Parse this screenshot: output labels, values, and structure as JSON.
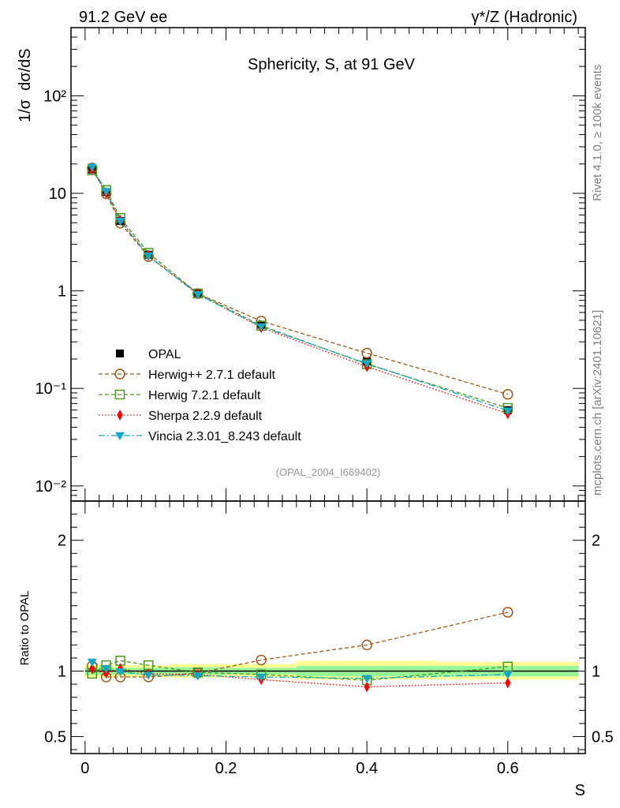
{
  "header": {
    "left": "91.2 GeV ee",
    "right": "γ*/Z (Hadronic)"
  },
  "side_labels": {
    "top": "Rivet 4.1.0, ≥ 100k events",
    "bottom": "mcplots.cern.ch [arXiv:2401.10621]"
  },
  "colors": {
    "opal": "#000000",
    "herwigpp": "#a0581c",
    "herwig7": "#4a9a20",
    "sherpa": "#ff0000",
    "vincia": "#17a8c8",
    "band_inner": "#98f598",
    "band_outer": "#fdfc96",
    "watermark": "#999999",
    "side_text": "#808080"
  },
  "chart_data": [
    {
      "type": "line",
      "panel": "main",
      "title": "Sphericity, S, at 91 GeV",
      "watermark": "(OPAL_2004_I669402)",
      "ylabel": "1/σ  dσ/dS",
      "yscale": "log",
      "xlim": [
        -0.02,
        0.71
      ],
      "ylim": [
        0.007,
        500
      ],
      "y_ticks": [
        {
          "value": 0.01,
          "label": "10⁻²"
        },
        {
          "value": 0.1,
          "label": "10⁻¹"
        },
        {
          "value": 1,
          "label": "1"
        },
        {
          "value": 10,
          "label": "10"
        },
        {
          "value": 100,
          "label": "10²"
        }
      ],
      "x": [
        0.01,
        0.03,
        0.05,
        0.09,
        0.16,
        0.25,
        0.4,
        0.6
      ],
      "legend_position": "bottom-left",
      "series": [
        {
          "name": "OPAL",
          "role": "data",
          "values": [
            17.5,
            10.3,
            5.2,
            2.35,
            0.95,
            0.45,
            0.19,
            0.06
          ]
        },
        {
          "name": "Herwig++ 2.7.1 default",
          "style": "dashed",
          "marker": "open-circle",
          "values": [
            18.2,
            9.9,
            4.95,
            2.25,
            0.94,
            0.49,
            0.23,
            0.087
          ]
        },
        {
          "name": "Herwig 7.2.1 default",
          "style": "dashed",
          "marker": "open-square",
          "values": [
            17.2,
            10.8,
            5.6,
            2.45,
            0.94,
            0.44,
            0.177,
            0.063
          ]
        },
        {
          "name": "Sherpa 2.2.9 default",
          "style": "dotted",
          "marker": "diamond",
          "values": [
            17.7,
            10.1,
            5.3,
            2.3,
            0.93,
            0.42,
            0.167,
            0.055
          ]
        },
        {
          "name": "Vincia 2.3.01_8.243 default",
          "style": "dashdot",
          "marker": "down-triangle",
          "values": [
            18.6,
            10.5,
            5.2,
            2.28,
            0.92,
            0.43,
            0.18,
            0.059
          ]
        }
      ]
    },
    {
      "type": "line",
      "panel": "ratio",
      "ylabel": "Ratio to OPAL",
      "xlabel": "S",
      "xlim": [
        -0.02,
        0.71
      ],
      "ylim": [
        0.37,
        2.3
      ],
      "x_ticks": [
        {
          "value": 0,
          "label": "0"
        },
        {
          "value": 0.2,
          "label": "0.2"
        },
        {
          "value": 0.4,
          "label": "0.4"
        },
        {
          "value": 0.6,
          "label": "0.6"
        }
      ],
      "y_ticks": [
        {
          "value": 0.5,
          "label": "0.5"
        },
        {
          "value": 1,
          "label": "1"
        },
        {
          "value": 2,
          "label": "2"
        }
      ],
      "x": [
        0.01,
        0.03,
        0.05,
        0.09,
        0.16,
        0.25,
        0.4,
        0.6
      ],
      "bands": [
        {
          "x0": 0.0,
          "x1": 0.02,
          "inner": [
            0.97,
            1.03
          ],
          "outer": [
            0.95,
            1.05
          ]
        },
        {
          "x0": 0.02,
          "x1": 0.04,
          "inner": [
            0.97,
            1.03
          ],
          "outer": [
            0.95,
            1.05
          ]
        },
        {
          "x0": 0.04,
          "x1": 0.06,
          "inner": [
            0.975,
            1.025
          ],
          "outer": [
            0.955,
            1.045
          ]
        },
        {
          "x0": 0.06,
          "x1": 0.12,
          "inner": [
            0.975,
            1.025
          ],
          "outer": [
            0.955,
            1.045
          ]
        },
        {
          "x0": 0.12,
          "x1": 0.2,
          "inner": [
            0.97,
            1.03
          ],
          "outer": [
            0.95,
            1.055
          ]
        },
        {
          "x0": 0.2,
          "x1": 0.3,
          "inner": [
            0.975,
            1.025
          ],
          "outer": [
            0.955,
            1.055
          ]
        },
        {
          "x0": 0.3,
          "x1": 0.5,
          "inner": [
            0.96,
            1.04
          ],
          "outer": [
            0.935,
            1.08
          ]
        },
        {
          "x0": 0.5,
          "x1": 0.7,
          "inner": [
            0.96,
            1.04
          ],
          "outer": [
            0.935,
            1.07
          ]
        }
      ],
      "series": [
        {
          "name": "OPAL",
          "role": "reference",
          "values": [
            1,
            1,
            1,
            1,
            1,
            1,
            1,
            1
          ]
        },
        {
          "name": "Herwig++ 2.7.1 default",
          "style": "dashed",
          "marker": "open-circle",
          "values": [
            1.04,
            0.955,
            0.955,
            0.955,
            0.985,
            1.085,
            1.2,
            1.45
          ]
        },
        {
          "name": "Herwig 7.2.1 default",
          "style": "dashed",
          "marker": "open-square",
          "values": [
            0.98,
            1.045,
            1.08,
            1.045,
            0.99,
            0.975,
            0.93,
            1.035
          ]
        },
        {
          "name": "Sherpa 2.2.9 default",
          "style": "dotted",
          "marker": "diamond",
          "values": [
            1.02,
            0.985,
            1.02,
            0.98,
            0.975,
            0.935,
            0.88,
            0.91
          ]
        },
        {
          "name": "Vincia 2.3.01_8.243 default",
          "style": "dashdot",
          "marker": "down-triangle",
          "values": [
            1.07,
            1.02,
            0.995,
            0.97,
            0.965,
            0.955,
            0.945,
            0.975
          ]
        }
      ]
    }
  ]
}
